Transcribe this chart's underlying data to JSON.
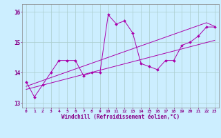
{
  "xlabel": "Windchill (Refroidissement éolien,°C)",
  "bg_color": "#cceeff",
  "line_color": "#aa00aa",
  "grid_color": "#aacccc",
  "x_values": [
    0,
    1,
    2,
    3,
    4,
    5,
    6,
    7,
    8,
    9,
    10,
    11,
    12,
    13,
    14,
    15,
    16,
    17,
    18,
    19,
    20,
    21,
    22,
    23
  ],
  "y_zigzag": [
    13.7,
    13.2,
    13.6,
    14.0,
    14.4,
    14.4,
    14.4,
    13.9,
    14.0,
    14.0,
    15.9,
    15.6,
    15.7,
    15.3,
    14.3,
    14.2,
    14.1,
    14.4,
    14.4,
    14.9,
    15.0,
    15.2,
    15.5,
    15.5
  ],
  "y_linear1": [
    13.45,
    13.52,
    13.59,
    13.66,
    13.73,
    13.8,
    13.87,
    13.94,
    14.01,
    14.08,
    14.15,
    14.22,
    14.29,
    14.36,
    14.43,
    14.5,
    14.57,
    14.64,
    14.71,
    14.78,
    14.85,
    14.92,
    14.99,
    15.06
  ],
  "y_linear2": [
    13.55,
    13.645,
    13.74,
    13.835,
    13.93,
    14.025,
    14.12,
    14.215,
    14.31,
    14.405,
    14.5,
    14.595,
    14.69,
    14.785,
    14.88,
    14.975,
    15.07,
    15.165,
    15.26,
    15.355,
    15.45,
    15.545,
    15.64,
    15.52
  ],
  "xlim": [
    -0.5,
    23.5
  ],
  "ylim": [
    12.85,
    16.25
  ],
  "yticks": [
    13,
    14,
    15,
    16
  ],
  "xticks": [
    0,
    1,
    2,
    3,
    4,
    5,
    6,
    7,
    8,
    9,
    10,
    11,
    12,
    13,
    14,
    15,
    16,
    17,
    18,
    19,
    20,
    21,
    22,
    23
  ]
}
